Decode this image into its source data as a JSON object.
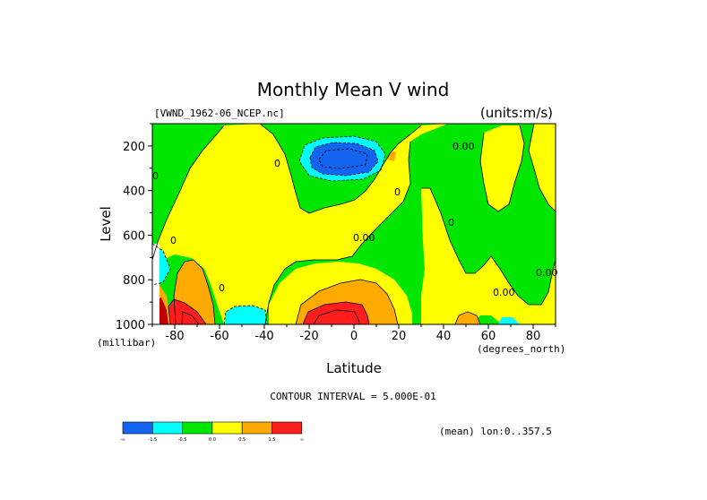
{
  "chart_data": {
    "type": "heatmap",
    "title": "Monthly Mean V wind",
    "dataset_label": "[VWND_1962-06_NCEP.nc]",
    "units_label": "(units:m/s)",
    "xlabel": "Latitude",
    "x_units": "(degrees_north)",
    "ylabel": "Level",
    "y_units": "(millibar)",
    "xlim": [
      -90,
      90
    ],
    "ylim": [
      1000,
      100
    ],
    "y_reversed": true,
    "x_ticks": [
      -80,
      -60,
      -40,
      -20,
      0,
      20,
      40,
      60,
      80
    ],
    "x_tick_labels": [
      "-80",
      "-60",
      "-40",
      "-20",
      "0",
      "20",
      "40",
      "60",
      "80"
    ],
    "y_ticks": [
      200,
      400,
      600,
      800,
      1000
    ],
    "y_tick_labels": [
      "200",
      "400",
      "600",
      "800",
      "1000"
    ],
    "contour_interval_text": "CONTOUR INTERVAL = 5.000E-01",
    "mean_note": "(mean) lon:0..357.5",
    "colorbar": {
      "bins": [
        {
          "lower": null,
          "upper": -1.5,
          "color": "#1464f0"
        },
        {
          "lower": -1.5,
          "upper": -0.5,
          "color": "#00ffff"
        },
        {
          "lower": -0.5,
          "upper": 0.0,
          "color": "#00e600"
        },
        {
          "lower": 0.0,
          "upper": 0.5,
          "color": "#ffff00"
        },
        {
          "lower": 0.5,
          "upper": 1.5,
          "color": "#ffaa00"
        },
        {
          "lower": 1.5,
          "upper": null,
          "color": "#ff1e1e"
        }
      ],
      "tick_labels": [
        "-∞",
        "-1.5",
        "-0.5",
        "0.0",
        "0.5",
        "1.5",
        "∞"
      ]
    },
    "contour_labels": [
      "0.00",
      "0.00",
      "0",
      "0.00",
      "0.00",
      "0",
      "0",
      "0",
      "0",
      "0"
    ]
  },
  "colors": {
    "strong_negative": "#1464f0",
    "negative": "#00ffff",
    "weak_negative": "#00e600",
    "weak_positive": "#ffff00",
    "positive": "#ffaa00",
    "strong_positive": "#ff1e1e",
    "deep_red": "#c00000"
  }
}
